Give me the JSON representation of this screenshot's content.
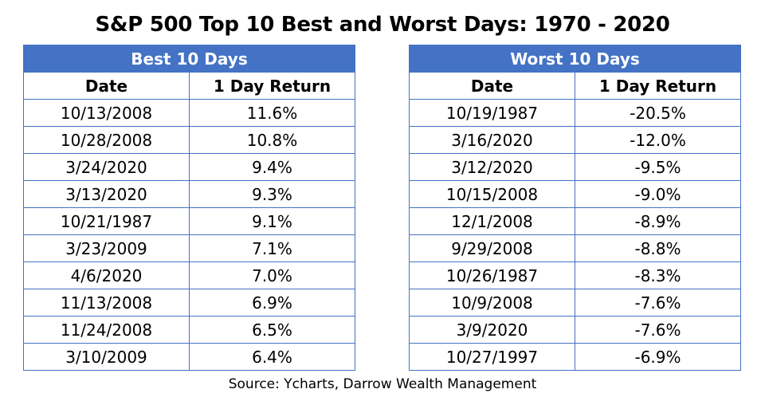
{
  "title": "S&P 500 Top 10 Best and Worst Days: 1970 - 2020",
  "best": {
    "header": "Best 10 Days",
    "columns": [
      "Date",
      "1 Day Return"
    ],
    "rows": [
      [
        "10/13/2008",
        "11.6%"
      ],
      [
        "10/28/2008",
        "10.8%"
      ],
      [
        "3/24/2020",
        "9.4%"
      ],
      [
        "3/13/2020",
        "9.3%"
      ],
      [
        "10/21/1987",
        "9.1%"
      ],
      [
        "3/23/2009",
        "7.1%"
      ],
      [
        "4/6/2020",
        "7.0%"
      ],
      [
        "11/13/2008",
        "6.9%"
      ],
      [
        "11/24/2008",
        "6.5%"
      ],
      [
        "3/10/2009",
        "6.4%"
      ]
    ]
  },
  "worst": {
    "header": "Worst 10 Days",
    "columns": [
      "Date",
      "1 Day Return"
    ],
    "rows": [
      [
        "10/19/1987",
        "-20.5%"
      ],
      [
        "3/16/2020",
        "-12.0%"
      ],
      [
        "3/12/2020",
        "-9.5%"
      ],
      [
        "10/15/2008",
        "-9.0%"
      ],
      [
        "12/1/2008",
        "-8.9%"
      ],
      [
        "9/29/2008",
        "-8.8%"
      ],
      [
        "10/26/1987",
        "-8.3%"
      ],
      [
        "10/9/2008",
        "-7.6%"
      ],
      [
        "3/9/2020",
        "-7.6%"
      ],
      [
        "10/27/1997",
        "-6.9%"
      ]
    ]
  },
  "source": "Source: Ycharts, Darrow Wealth Management",
  "colors": {
    "header_fill": "#4472c4",
    "header_text": "#ffffff",
    "border": "#4472c4"
  }
}
